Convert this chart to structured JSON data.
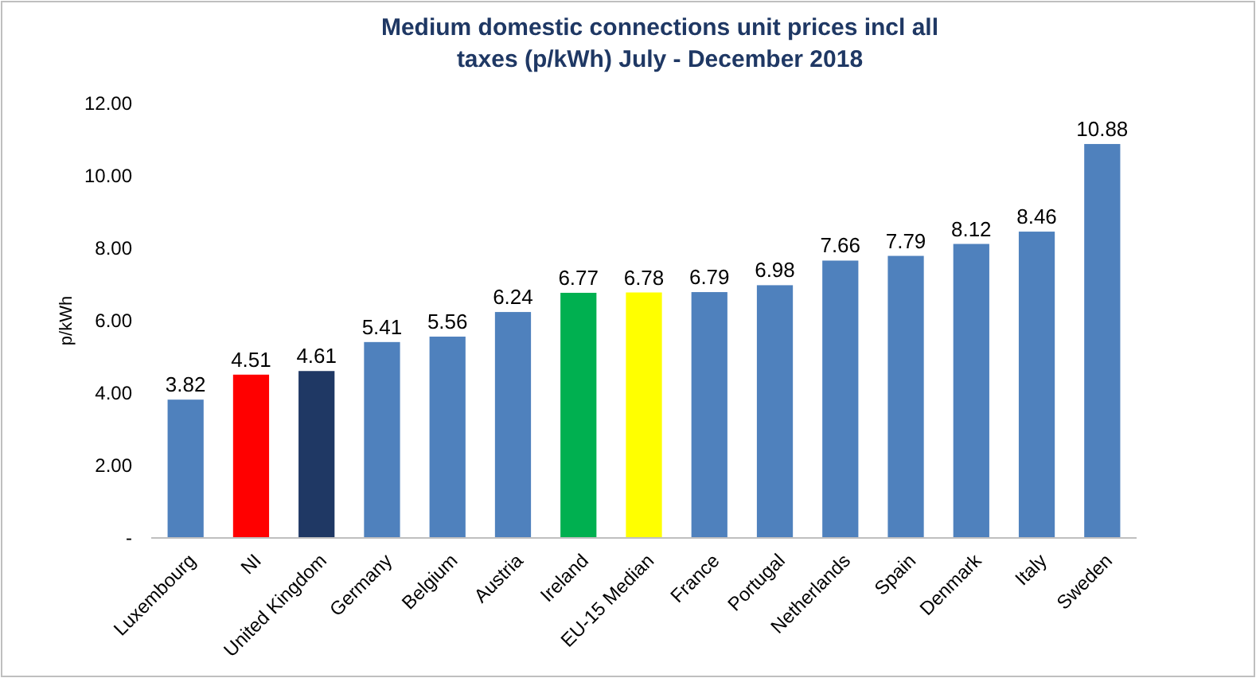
{
  "chart_data": {
    "type": "bar",
    "title": "Medium domestic connections unit prices incl all taxes (p/kWh) July - December 2018",
    "ylabel": "p/kWh",
    "categories": [
      "Luxembourg",
      "NI",
      "United Kingdom",
      "Germany",
      "Belgium",
      "Austria",
      "Ireland",
      "EU-15 Median",
      "France",
      "Portugal",
      "Netherlands",
      "Spain",
      "Denmark",
      "Italy",
      "Sweden"
    ],
    "values": [
      3.82,
      4.51,
      4.61,
      5.41,
      5.56,
      6.24,
      6.77,
      6.78,
      6.79,
      6.98,
      7.66,
      7.79,
      8.12,
      8.46,
      10.88
    ],
    "colors": [
      "#4f81bd",
      "#ff0000",
      "#1f3864",
      "#4f81bd",
      "#4f81bd",
      "#4f81bd",
      "#00b050",
      "#ffff00",
      "#4f81bd",
      "#4f81bd",
      "#4f81bd",
      "#4f81bd",
      "#4f81bd",
      "#4f81bd",
      "#4f81bd"
    ],
    "ylim": [
      0,
      12
    ],
    "yticks": [
      {
        "value": 0,
        "label": "-"
      },
      {
        "value": 2,
        "label": "2.00"
      },
      {
        "value": 4,
        "label": "4.00"
      },
      {
        "value": 6,
        "label": "6.00"
      },
      {
        "value": 8,
        "label": "8.00"
      },
      {
        "value": 10,
        "label": "10.00"
      },
      {
        "value": 12,
        "label": "12.00"
      }
    ],
    "data_labels": true
  }
}
